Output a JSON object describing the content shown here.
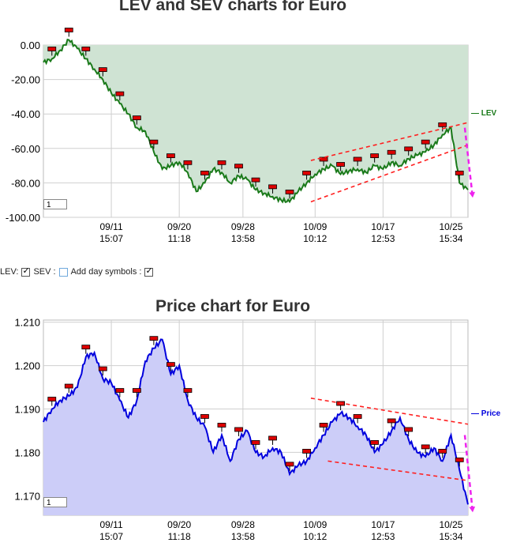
{
  "lev_chart": {
    "title": "LEV and SEV charts for Euro",
    "zoom_value": "1",
    "legend_label": "LEV",
    "colors": {
      "line": "#1a7a1a",
      "fill": "#cfe3d3",
      "trend": "#ff2020",
      "arrow": "#ee22ee",
      "marker": "#dd0000"
    }
  },
  "controls": {
    "lev_label": "LEV:",
    "lev_checked": true,
    "sev_label": "SEV :",
    "sev_checked": false,
    "day_symbols_label": "Add day symbols :",
    "day_symbols_checked": true
  },
  "price_chart": {
    "title": "Price chart for Euro",
    "zoom_value": "1",
    "legend_label": "Price",
    "colors": {
      "line": "#0000dd",
      "fill": "#cccdf8",
      "trend": "#ff2020",
      "arrow": "#ee22ee",
      "marker": "#dd0000"
    }
  },
  "chart_data": [
    {
      "type": "area",
      "title": "LEV and SEV charts for Euro",
      "xlabel": "",
      "ylabel": "",
      "x_tick_labels": [
        "09/11 15:07",
        "09/20 11:18",
        "09/28 13:58",
        "10/09 10:12",
        "10/17 12:53",
        "10/25 15:34"
      ],
      "ylim": [
        -100,
        0
      ],
      "y_ticks": [
        "0.00",
        "-20.00",
        "-40.00",
        "-60.00",
        "-80.00",
        "-100.00"
      ],
      "grid": true,
      "series": [
        {
          "name": "LEV",
          "x": [
            0,
            2,
            4,
            6,
            8,
            10,
            12,
            14,
            16,
            18,
            20,
            22,
            24,
            26,
            28,
            30,
            32,
            34,
            36,
            38,
            40,
            42,
            44,
            46,
            48,
            50,
            52,
            54,
            56,
            58,
            60,
            62,
            64,
            66,
            68,
            70,
            72,
            74,
            76,
            78,
            80,
            82,
            84,
            86,
            88,
            90,
            92,
            94,
            96,
            98,
            100
          ],
          "values": [
            -10,
            -8,
            -3,
            3,
            -2,
            -8,
            -14,
            -20,
            -28,
            -34,
            -40,
            -48,
            -50,
            -62,
            -72,
            -70,
            -68,
            -74,
            -85,
            -80,
            -72,
            -74,
            -80,
            -76,
            -78,
            -84,
            -86,
            -88,
            -90,
            -91,
            -85,
            -80,
            -75,
            -72,
            -70,
            -75,
            -73,
            -72,
            -74,
            -70,
            -72,
            -68,
            -70,
            -66,
            -64,
            -62,
            -58,
            -52,
            -48,
            -80,
            -84
          ]
        }
      ],
      "trend_lines": [
        {
          "from": [
            63,
            -91
          ],
          "to": [
            100,
            -58
          ]
        },
        {
          "from": [
            63,
            -67
          ],
          "to": [
            100,
            -45
          ]
        }
      ]
    },
    {
      "type": "area",
      "title": "Price chart for Euro",
      "xlabel": "",
      "ylabel": "",
      "x_tick_labels": [
        "09/11 15:07",
        "09/20 11:18",
        "09/28 13:58",
        "10/09 10:12",
        "10/17 12:53",
        "10/25 15:34"
      ],
      "ylim": [
        1.1655,
        1.2105
      ],
      "y_ticks": [
        "1.210",
        "1.200",
        "1.190",
        "1.180",
        "1.170"
      ],
      "grid": true,
      "series": [
        {
          "name": "Price",
          "x": [
            0,
            2,
            4,
            6,
            8,
            10,
            12,
            14,
            16,
            18,
            20,
            22,
            24,
            26,
            28,
            30,
            32,
            34,
            36,
            38,
            40,
            42,
            44,
            46,
            48,
            50,
            52,
            54,
            56,
            58,
            60,
            62,
            64,
            66,
            68,
            70,
            72,
            74,
            76,
            78,
            80,
            82,
            84,
            86,
            88,
            90,
            92,
            94,
            96,
            98,
            100
          ],
          "values": [
            1.187,
            1.19,
            1.192,
            1.193,
            1.195,
            1.202,
            1.203,
            1.197,
            1.196,
            1.192,
            1.188,
            1.192,
            1.201,
            1.204,
            1.206,
            1.198,
            1.2,
            1.192,
            1.188,
            1.186,
            1.18,
            1.184,
            1.178,
            1.183,
            1.185,
            1.18,
            1.179,
            1.181,
            1.18,
            1.175,
            1.177,
            1.178,
            1.181,
            1.184,
            1.187,
            1.189,
            1.188,
            1.186,
            1.184,
            1.18,
            1.182,
            1.185,
            1.188,
            1.183,
            1.18,
            1.179,
            1.181,
            1.178,
            1.184,
            1.176,
            1.168
          ]
        }
      ],
      "trend_lines": [
        {
          "from": [
            63,
            1.1925
          ],
          "to": [
            100,
            1.1865
          ]
        },
        {
          "from": [
            67,
            1.178
          ],
          "to": [
            100,
            1.1735
          ]
        }
      ]
    }
  ]
}
